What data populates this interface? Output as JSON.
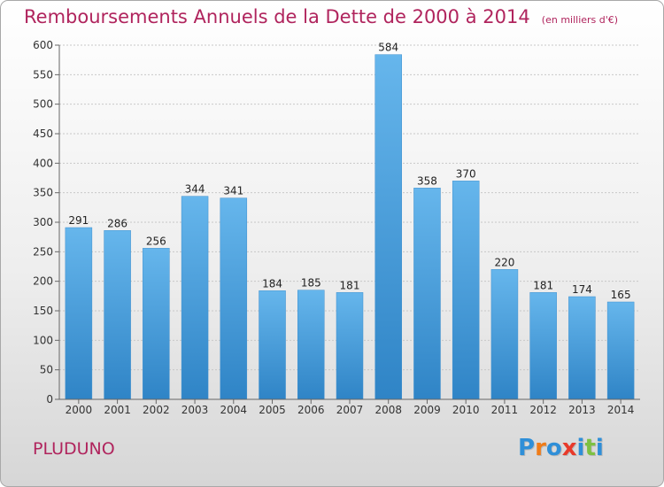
{
  "header": {
    "title": "Remboursements Annuels de la Dette de 2000 à 2014",
    "unit": "(en milliers d'€)"
  },
  "footer": {
    "commune": "PLUDUNO",
    "logo_text": "Proxiti"
  },
  "colors": {
    "title": "#b0245d",
    "bar_top": "#66b6ec",
    "bar_bottom": "#2f84c6",
    "logo": [
      "#2f8fd8",
      "#f07c18",
      "#2f8fd8",
      "#e83a2a",
      "#2f8fd8",
      "#7dc142",
      "#2f8fd8"
    ]
  },
  "chart_data": {
    "type": "bar",
    "title": "Remboursements Annuels de la Dette de 2000 à 2014",
    "xlabel": "",
    "ylabel": "en milliers d'€",
    "categories": [
      "2000",
      "2001",
      "2002",
      "2003",
      "2004",
      "2005",
      "2006",
      "2007",
      "2008",
      "2009",
      "2010",
      "2011",
      "2012",
      "2013",
      "2014"
    ],
    "values": [
      291,
      286,
      256,
      344,
      341,
      184,
      185,
      181,
      584,
      358,
      370,
      220,
      181,
      174,
      165
    ],
    "ylim": [
      0,
      600
    ],
    "yticks": [
      0,
      50,
      100,
      150,
      200,
      250,
      300,
      350,
      400,
      450,
      500,
      550,
      600
    ],
    "grid": true
  }
}
